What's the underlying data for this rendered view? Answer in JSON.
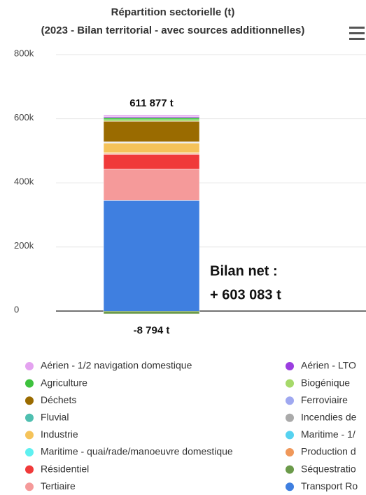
{
  "chart_data": {
    "type": "stacked_bar",
    "title": "Répartition sectorielle (t)",
    "subtitle": "(2023 - Bilan territorial - avec sources additionnelles)",
    "categories": [
      null
    ],
    "ylim": [
      -30000,
      800000
    ],
    "yticks": [
      0,
      {
        "value": 200000,
        "label": "200k"
      },
      {
        "value": 400000,
        "label": "400k"
      },
      {
        "value": 600000,
        "label": "600k"
      },
      {
        "value": 800000,
        "label": "800k"
      }
    ],
    "grid": true,
    "annotations": [
      "611 877 t",
      "-8 794 t",
      "Bilan net :",
      "+ 603 083 t"
    ],
    "series": [
      {
        "name": "Aérien - 1/2 navigation domestique",
        "color": "#e4a3f0",
        "values": [
          5877
        ]
      },
      {
        "name": "Aérien - LTO",
        "color": "#9b3ee0",
        "values": [
          3000
        ]
      },
      {
        "name": "Agriculture",
        "color": "#3ec23e",
        "values": [
          6000
        ]
      },
      {
        "name": "Biogénique",
        "color": "#a6d96a",
        "values": [
          5000
        ]
      },
      {
        "name": "Déchets",
        "color": "#9a6b00",
        "values": [
          64000
        ]
      },
      {
        "name": "Ferroviaire",
        "color": "#9fa8f0",
        "values": [
          1500
        ]
      },
      {
        "name": "Fluvial",
        "color": "#4fbfb0",
        "values": [
          500
        ]
      },
      {
        "name": "Incendies de",
        "color": "#aaaaaa",
        "values": [
          2000
        ]
      },
      {
        "name": "Industrie",
        "color": "#f5c35a",
        "values": [
          30000
        ]
      },
      {
        "name": "Maritime - 1/",
        "color": "#56d2f0",
        "values": [
          1000
        ]
      },
      {
        "name": "Maritime - quai/rade/manoeuvre domestique",
        "color": "#5ff0f0",
        "values": [
          1000
        ]
      },
      {
        "name": "Production d",
        "color": "#f0985a",
        "values": [
          3000
        ]
      },
      {
        "name": "Résidentiel",
        "color": "#f03a3a",
        "values": [
          46000
        ]
      },
      {
        "name": "Séquestratio",
        "color": "#6b9a4a",
        "values": [
          -8794
        ]
      },
      {
        "name": "Tertiaire",
        "color": "#f59a9a",
        "values": [
          98000
        ]
      },
      {
        "name": "Transport Ro",
        "color": "#3f7fe0",
        "values": [
          345000
        ]
      }
    ]
  }
}
